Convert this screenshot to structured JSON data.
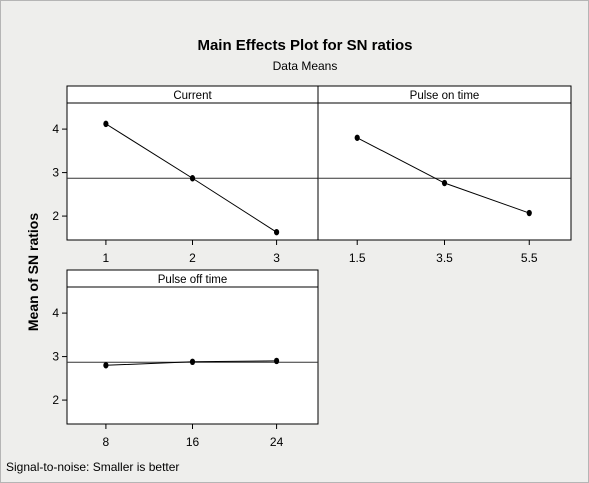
{
  "title": "Main Effects Plot for SN ratios",
  "subtitle": "Data Means",
  "ylabel": "Mean of SN ratios",
  "footnote": "Signal-to-noise: Smaller is better",
  "colors": {
    "background": "#eeeeec",
    "panel": "#ffffff",
    "line": "#000000"
  },
  "chart_data": {
    "type": "line",
    "title": "Main Effects Plot for SN ratios",
    "subtitle": "Data Means",
    "ylabel": "Mean of SN ratios",
    "ylim": [
      1.45,
      4.6
    ],
    "yticks": [
      2,
      3,
      4
    ],
    "reference_mean": 2.87,
    "grid": false,
    "panels": [
      {
        "name": "Current",
        "categories": [
          "1",
          "2",
          "3"
        ],
        "values": [
          4.12,
          2.87,
          1.63
        ]
      },
      {
        "name": "Pulse on time",
        "categories": [
          "1.5",
          "3.5",
          "5.5"
        ],
        "values": [
          3.8,
          2.76,
          2.07
        ]
      },
      {
        "name": "Pulse off time",
        "categories": [
          "8",
          "16",
          "24"
        ],
        "values": [
          2.8,
          2.88,
          2.9
        ]
      }
    ]
  }
}
